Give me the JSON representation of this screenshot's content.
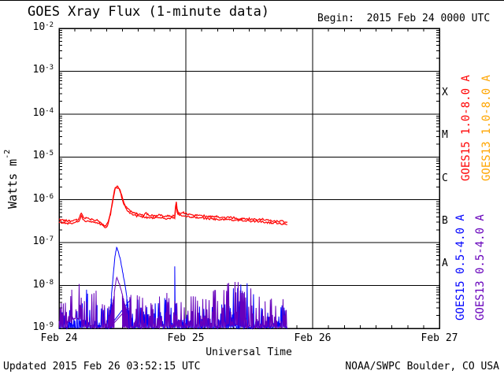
{
  "title": "GOES Xray Flux (1-minute data)",
  "begin_label": "Begin:  2015 Feb 24 0000 UTC",
  "footer": {
    "updated": "Updated 2015 Feb 26 03:52:15 UTC",
    "source": "NOAA/SWPC Boulder, CO USA"
  },
  "axes": {
    "xlabel": "Universal Time",
    "ylabel_base": "Watts m",
    "ylabel_exp": "-2",
    "y_tick_exponents": [
      -2,
      -3,
      -4,
      -5,
      -6,
      -7,
      -8,
      -9
    ],
    "x_tick_labels": [
      "Feb 24",
      "Feb 25",
      "Feb 26",
      "Feb 27"
    ],
    "x_tick_hours": [
      0,
      24,
      48,
      72
    ],
    "minor_x_step_hours": 3,
    "flare_class_letters": [
      "X",
      "M",
      "C",
      "B",
      "A"
    ],
    "grid": true
  },
  "colors": {
    "background": "#ffffff",
    "axis": "#000000",
    "goes15_long": "#ff0000",
    "goes13_long": "#ff0000",
    "goes15_short": "#0000ff",
    "goes13_short": "#6600bb",
    "legend_goes13_long_text": "#ffa500"
  },
  "legend": [
    {
      "label": "GOES15 1.0-8.0 A",
      "color": "#ff0000"
    },
    {
      "label": "GOES13 1.0-8.0 A",
      "color": "#ffa500"
    },
    {
      "label": "GOES15 0.5-4.0 A",
      "color": "#0000ff"
    },
    {
      "label": "GOES13 0.5-4.0 A",
      "color": "#6600bb"
    }
  ],
  "chart_data": {
    "type": "line",
    "title": "GOES Xray Flux (1-minute data)",
    "xlabel": "Universal Time",
    "ylabel": "Watts m^-2",
    "x_days": [
      "2015 Feb 24",
      "2015 Feb 25",
      "2015 Feb 26",
      "2015 Feb 27"
    ],
    "x_range_hours": [
      0,
      72
    ],
    "data_end_hour": 43.2,
    "ylim": [
      1e-09,
      0.01
    ],
    "yscale": "log",
    "grid": true,
    "legend_position": "right-rotated",
    "series": [
      {
        "name": "GOES15 1.0-8.0 A",
        "kind": "line",
        "color": "#ff0000",
        "points": [
          [
            0,
            3.4e-07
          ],
          [
            1,
            3.3e-07
          ],
          [
            2,
            3.2e-07
          ],
          [
            3,
            3.3e-07
          ],
          [
            3.8,
            3.6e-07
          ],
          [
            4.2,
            5e-07
          ],
          [
            4.6,
            3.9e-07
          ],
          [
            5.5,
            3.6e-07
          ],
          [
            6.5,
            3.4e-07
          ],
          [
            7.5,
            3.3e-07
          ],
          [
            8.3,
            2.6e-07
          ],
          [
            8.8,
            2.4e-07
          ],
          [
            9.3,
            3e-07
          ],
          [
            9.8,
            5.5e-07
          ],
          [
            10.2,
            1.1e-06
          ],
          [
            10.6,
            1.9e-06
          ],
          [
            11.0,
            2.1e-06
          ],
          [
            11.4,
            1.9e-06
          ],
          [
            11.8,
            1.3e-06
          ],
          [
            12.3,
            8.5e-07
          ],
          [
            12.8,
            6.5e-07
          ],
          [
            13.4,
            5.5e-07
          ],
          [
            14.0,
            5e-07
          ],
          [
            15,
            4.6e-07
          ],
          [
            16,
            4.4e-07
          ],
          [
            16.5,
            4.8e-07
          ],
          [
            17,
            4.3e-07
          ],
          [
            18,
            4.2e-07
          ],
          [
            19,
            4.4e-07
          ],
          [
            20,
            4.1e-07
          ],
          [
            21,
            4.2e-07
          ],
          [
            21.9,
            4.3e-07
          ],
          [
            22.15,
            1.05e-06
          ],
          [
            22.4,
            5.5e-07
          ],
          [
            22.7,
            4.8e-07
          ],
          [
            23.5,
            5e-07
          ],
          [
            24.5,
            4.6e-07
          ],
          [
            25.5,
            4.4e-07
          ],
          [
            26.5,
            4.5e-07
          ],
          [
            27.5,
            4.2e-07
          ],
          [
            28.5,
            4e-07
          ],
          [
            29.5,
            4.1e-07
          ],
          [
            30.5,
            3.9e-07
          ],
          [
            31.5,
            3.8e-07
          ],
          [
            32.5,
            3.9e-07
          ],
          [
            33.5,
            3.7e-07
          ],
          [
            34.5,
            3.6e-07
          ],
          [
            35.5,
            3.7e-07
          ],
          [
            36.5,
            3.5e-07
          ],
          [
            37.5,
            3.4e-07
          ],
          [
            38.5,
            3.5e-07
          ],
          [
            39.5,
            3.3e-07
          ],
          [
            40.5,
            3.2e-07
          ],
          [
            41.5,
            3.2e-07
          ],
          [
            42.5,
            3.1e-07
          ],
          [
            43.2,
            3e-07
          ]
        ]
      },
      {
        "name": "GOES13 1.0-8.0 A",
        "kind": "line",
        "color": "#ff0000",
        "points": [
          [
            0,
            2.9e-07
          ],
          [
            1,
            2.9e-07
          ],
          [
            2,
            2.8e-07
          ],
          [
            3,
            2.9e-07
          ],
          [
            3.8,
            3.2e-07
          ],
          [
            4.2,
            4.3e-07
          ],
          [
            4.6,
            3.4e-07
          ],
          [
            5.5,
            3.1e-07
          ],
          [
            6.5,
            3e-07
          ],
          [
            7.5,
            2.9e-07
          ],
          [
            8.3,
            2.4e-07
          ],
          [
            8.8,
            2.2e-07
          ],
          [
            9.3,
            2.7e-07
          ],
          [
            9.8,
            5e-07
          ],
          [
            10.2,
            1e-06
          ],
          [
            10.6,
            1.8e-06
          ],
          [
            11.0,
            2e-06
          ],
          [
            11.4,
            1.8e-06
          ],
          [
            11.8,
            1.2e-06
          ],
          [
            12.3,
            7.8e-07
          ],
          [
            12.8,
            5.8e-07
          ],
          [
            13.4,
            4.9e-07
          ],
          [
            14,
            4.4e-07
          ],
          [
            15,
            4.1e-07
          ],
          [
            16,
            3.9e-07
          ],
          [
            17,
            3.8e-07
          ],
          [
            18,
            3.7e-07
          ],
          [
            19,
            3.9e-07
          ],
          [
            20,
            3.6e-07
          ],
          [
            21,
            3.7e-07
          ],
          [
            21.9,
            3.8e-07
          ],
          [
            22.15,
            8.5e-07
          ],
          [
            22.4,
            4.8e-07
          ],
          [
            23,
            4.3e-07
          ],
          [
            24,
            4.1e-07
          ],
          [
            25.5,
            3.9e-07
          ],
          [
            27,
            3.8e-07
          ],
          [
            28.5,
            3.6e-07
          ],
          [
            30,
            3.5e-07
          ],
          [
            31.5,
            3.4e-07
          ],
          [
            33,
            3.4e-07
          ],
          [
            34.5,
            3.3e-07
          ],
          [
            36,
            3.2e-07
          ],
          [
            37.5,
            3.1e-07
          ],
          [
            39,
            3e-07
          ],
          [
            40.5,
            2.9e-07
          ],
          [
            42,
            2.8e-07
          ],
          [
            43.2,
            2.7e-07
          ]
        ]
      },
      {
        "name": "GOES15 0.5-4.0 A",
        "kind": "noise",
        "color": "#0000ff",
        "envelope": [
          [
            0,
            0.8,
            1e-09,
            2.5e-09
          ],
          [
            0.8,
            1.6,
            1e-09,
            6.3e-09
          ],
          [
            1.6,
            4.4,
            1e-09,
            2.8e-09
          ],
          [
            4.4,
            5.4,
            1e-09,
            9e-09
          ],
          [
            5.4,
            7.2,
            1e-09,
            4.5e-09
          ],
          [
            7.2,
            9.3,
            1e-09,
            3.2e-09
          ],
          [
            13.5,
            15,
            1e-09,
            5e-09
          ],
          [
            15,
            18,
            1e-09,
            3.5e-09
          ],
          [
            18,
            21,
            1e-09,
            5.6e-09
          ],
          [
            21,
            21.9,
            1e-09,
            3.2e-09
          ],
          [
            21.9,
            22.4,
            1e-09,
            2.8e-08
          ],
          [
            22.4,
            24,
            1e-09,
            3.2e-09
          ],
          [
            24,
            27,
            1e-09,
            3.5e-09
          ],
          [
            27,
            30,
            1e-09,
            3.2e-09
          ],
          [
            30,
            32,
            1e-09,
            4e-09
          ],
          [
            32,
            34,
            1e-09,
            1.1e-08
          ],
          [
            34,
            36,
            1e-09,
            1.25e-08
          ],
          [
            36,
            37.5,
            1e-09,
            6.3e-09
          ],
          [
            37.5,
            40,
            1e-09,
            3.2e-09
          ],
          [
            40,
            43.2,
            1e-09,
            3.5e-09
          ]
        ],
        "feature": [
          [
            9.3,
            1.2e-09
          ],
          [
            9.8,
            4e-09
          ],
          [
            10.2,
            1.5e-08
          ],
          [
            10.6,
            5e-08
          ],
          [
            10.9,
            7.5e-08
          ],
          [
            11.2,
            6.5e-08
          ],
          [
            11.6,
            4e-08
          ],
          [
            12.0,
            2.2e-08
          ],
          [
            12.5,
            1e-08
          ],
          [
            13.0,
            4e-09
          ],
          [
            13.5,
            1.5e-09
          ]
        ]
      },
      {
        "name": "GOES13 0.5-4.0 A",
        "kind": "noise",
        "color": "#6600bb",
        "envelope": [
          [
            0,
            1.6,
            1e-09,
            4e-09
          ],
          [
            1.6,
            2.4,
            1.3e-09,
            6.3e-09
          ],
          [
            2.4,
            4.2,
            1.6e-09,
            1.32e-08
          ],
          [
            4.2,
            5.2,
            1e-09,
            5e-09
          ],
          [
            5.2,
            7.4,
            1e-09,
            8e-09
          ],
          [
            7.4,
            9.5,
            1e-09,
            4e-09
          ],
          [
            13,
            16,
            1e-09,
            6.3e-09
          ],
          [
            16,
            19,
            1e-09,
            4.5e-09
          ],
          [
            19,
            21.5,
            1e-09,
            7e-09
          ],
          [
            21.5,
            24,
            1e-09,
            4.5e-09
          ],
          [
            24,
            26,
            1e-09,
            6.3e-09
          ],
          [
            26,
            29,
            1e-09,
            5e-09
          ],
          [
            29,
            31.5,
            1e-09,
            8e-09
          ],
          [
            31.5,
            34.5,
            1.1e-09,
            1.26e-08
          ],
          [
            34.5,
            36.5,
            1e-09,
            9e-09
          ],
          [
            36.5,
            39,
            1e-09,
            5.6e-09
          ],
          [
            39,
            43.2,
            1e-09,
            5e-09
          ]
        ],
        "feature": [
          [
            9.5,
            1.5e-09
          ],
          [
            10.3,
            5e-09
          ],
          [
            10.9,
            1.6e-08
          ],
          [
            11.4,
            1.1e-08
          ],
          [
            12.2,
            5e-09
          ],
          [
            13.0,
            2e-09
          ]
        ]
      }
    ]
  }
}
